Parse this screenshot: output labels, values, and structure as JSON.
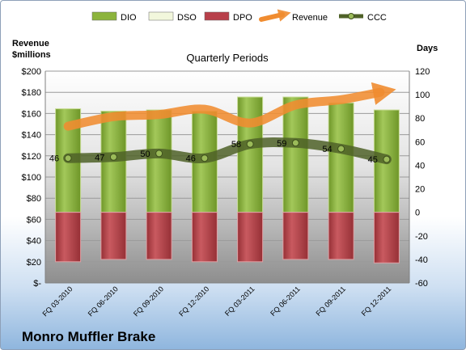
{
  "company": "Monro Muffler Brake",
  "chart_data": {
    "type": "bar",
    "title": "Quarterly Periods",
    "left_axis_title_line1": "Revenue",
    "left_axis_title_line2": "$millions",
    "right_axis_title": "Days",
    "categories": [
      "FQ 03-2010",
      "FQ 06-2010",
      "FQ 09-2010",
      "FQ 12-2010",
      "FQ 03-2011",
      "FQ 06-2011",
      "FQ 09-2011",
      "FQ 12-2011"
    ],
    "left_ticks": [
      "$-",
      "$20",
      "$40",
      "$60",
      "$80",
      "$100",
      "$120",
      "$140",
      "$160",
      "$180",
      "$200"
    ],
    "left_ylim": [
      0,
      200
    ],
    "right_ylim": [
      -60,
      120
    ],
    "right_ticks": [
      "-60",
      "-40",
      "-20",
      "0",
      "20",
      "40",
      "60",
      "80",
      "100",
      "120"
    ],
    "legend_position": "top",
    "grid": true,
    "series": [
      {
        "name": "DIO",
        "axis": "right",
        "values": [
          88,
          86,
          87,
          86,
          98,
          98,
          93,
          87
        ],
        "color": "#8cb43c"
      },
      {
        "name": "DSO",
        "axis": "right",
        "values": [
          0,
          0,
          0,
          0,
          0,
          0,
          0,
          0
        ],
        "color": "#f2f7dc"
      },
      {
        "name": "DPO",
        "axis": "right",
        "values": [
          -42,
          -40,
          -40,
          -42,
          -42,
          -40,
          -40,
          -43
        ],
        "color": "#b8404a"
      },
      {
        "name": "Revenue",
        "axis": "left",
        "values": [
          148,
          157,
          159,
          164,
          151,
          168,
          173,
          180
        ],
        "color": "#f08c30"
      },
      {
        "name": "CCC",
        "axis": "right",
        "values": [
          46,
          47,
          50,
          46,
          58,
          59,
          54,
          45
        ],
        "color": "#4f6228"
      }
    ]
  }
}
